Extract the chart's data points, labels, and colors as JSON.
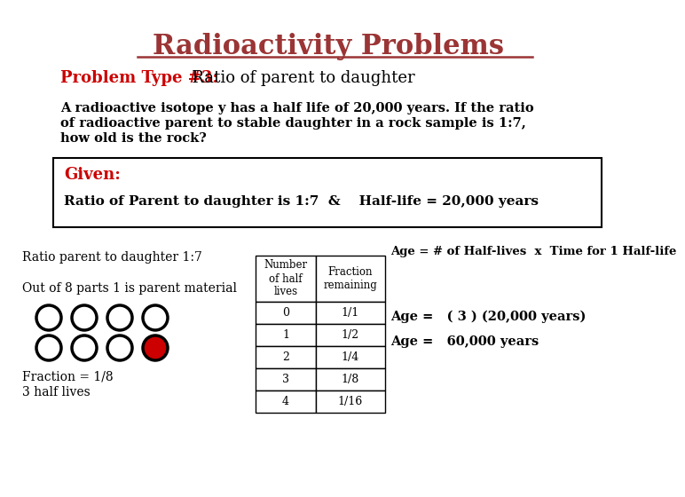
{
  "title": "Radioactivity Problems",
  "title_color": "#9B3535",
  "title_fontsize": 22,
  "subtitle_bold": "Problem Type #3:",
  "subtitle_color": "#CC0000",
  "subtitle_rest": "  Ratio of parent to daughter",
  "subtitle_fontsize": 13,
  "problem_text_line1": "A radioactive isotope y has a half life of 20,000 years. If the ratio",
  "problem_text_line2": "of radioactive parent to stable daughter in a rock sample is 1:7,",
  "problem_text_line3": "how old is the rock?",
  "problem_fontsize": 10.5,
  "given_label": "Given:",
  "given_color": "#CC0000",
  "given_fontsize": 13,
  "given_detail": "Ratio of Parent to daughter is 1:7  &    Half-life = 20,000 years",
  "given_detail_fontsize": 11,
  "ratio_text": "Ratio parent to daughter 1:7",
  "parts_text": "Out of 8 parts 1 is parent material",
  "fraction_line1": "Fraction = 1/8",
  "fraction_line2": "3 half lives",
  "age_formula": "Age = # of Half-lives  x  Time for 1 Half-life",
  "age_calc": "Age =   ( 3 ) (20,000 years)",
  "age_result": "Age =   60,000 years",
  "table_headers": [
    "Number\nof half\nlives",
    "Fraction\nremaining"
  ],
  "table_data": [
    [
      "0",
      "1/1"
    ],
    [
      "1",
      "1/2"
    ],
    [
      "2",
      "1/4"
    ],
    [
      "3",
      "1/8"
    ],
    [
      "4",
      "1/16"
    ]
  ],
  "bg_color": "#FFFFFF",
  "text_color": "#000000",
  "circle_empty_color": "#FFFFFF",
  "circle_filled_color": "#CC0000",
  "circle_edge_color": "#000000"
}
